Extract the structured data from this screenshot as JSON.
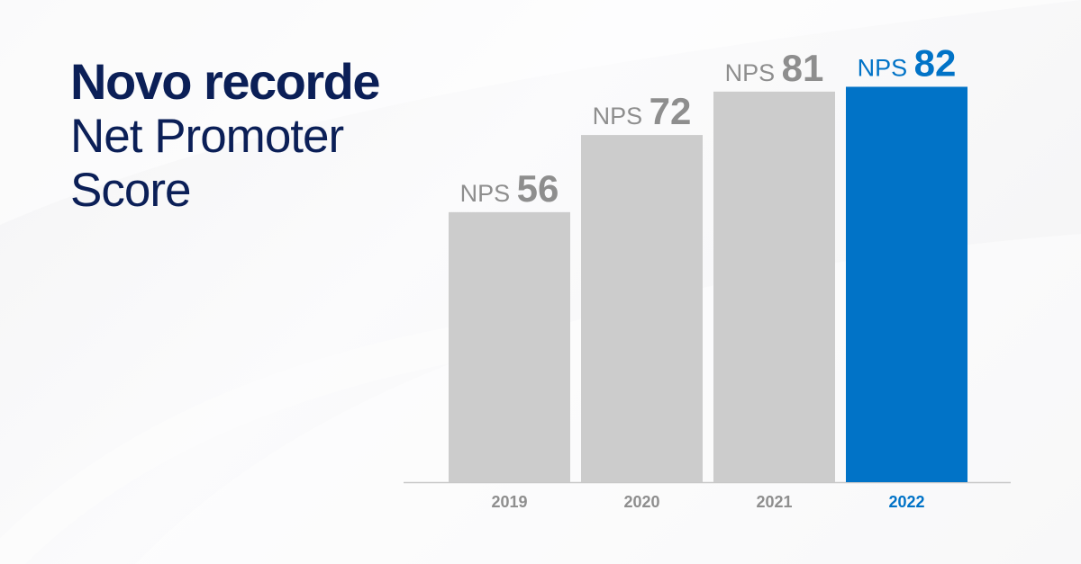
{
  "headline": {
    "title": "Novo recorde",
    "subtitle_lines": [
      "Net Promoter",
      "Score"
    ]
  },
  "colors": {
    "navy": "#0b1f57",
    "bar_default": "#cccccc",
    "bar_highlight": "#0173c7",
    "label_default": "#8e8e8e",
    "axis": "#c8c8c8"
  },
  "chart_data": {
    "type": "bar",
    "title": "",
    "xlabel": "",
    "ylabel": "",
    "ylim": [
      0,
      100
    ],
    "grid": false,
    "legend": "none",
    "categories": [
      "2019",
      "2020",
      "2021",
      "2022"
    ],
    "values": [
      56,
      72,
      81,
      82
    ],
    "label_prefix": "NPS",
    "highlight_index": 3
  }
}
